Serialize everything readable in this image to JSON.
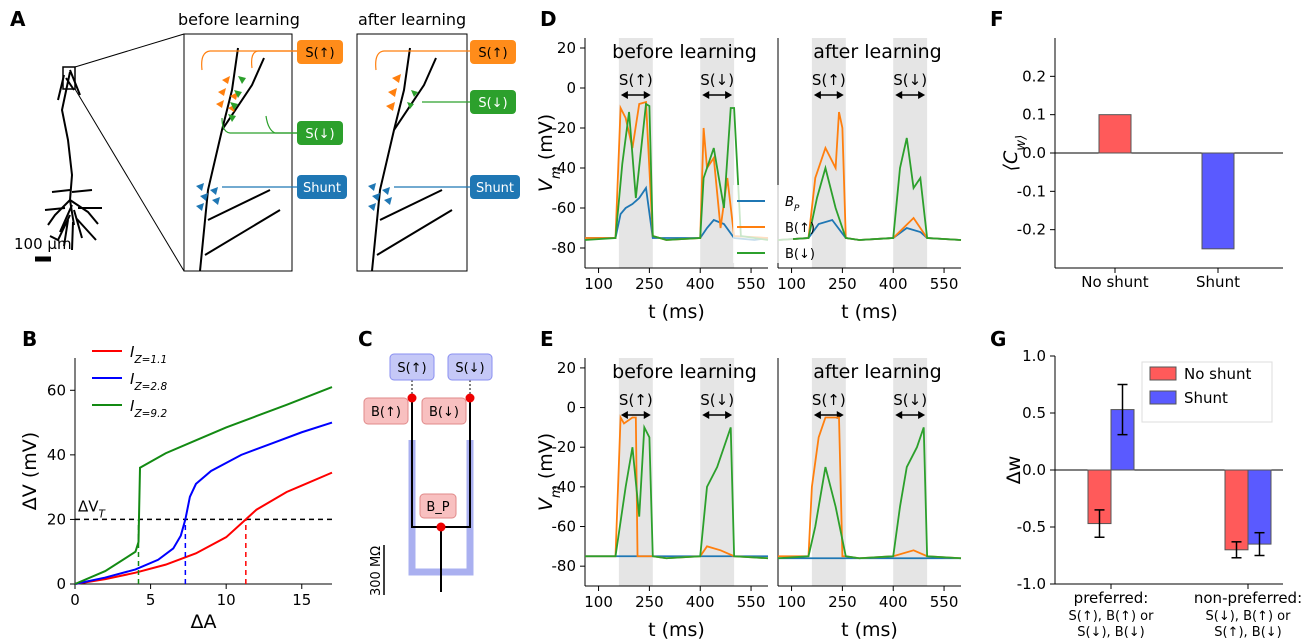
{
  "panel_labels": [
    "A",
    "B",
    "C",
    "D",
    "E",
    "F",
    "G"
  ],
  "colors": {
    "orange": "#ff7f0e",
    "green": "#2ca02c",
    "blue": "#1f77b4",
    "red": "#ff0000",
    "bluecurve": "#0000ff",
    "bargreen": "#138a13",
    "bar_red": "#ff5a5a",
    "bar_blue": "#5a5aff",
    "box_orange": "#ff8c1a",
    "box_green": "#2ca02c",
    "box_blue": "#1f77b4",
    "shade": "#e5e5e5"
  },
  "panel_a": {
    "title_before": "before learning",
    "title_after": "after learning",
    "scale_bar": "100 μm",
    "inputs": [
      "S(↑)",
      "S(↓)",
      "Shunt"
    ]
  },
  "panel_c": {
    "scale_label": "300 MΩ",
    "labels": [
      "S(↑)",
      "S(↓)",
      "B(↑)",
      "B(↓)",
      "B_P"
    ]
  },
  "trace_panels": {
    "ylabel": "V_m (mV)",
    "xlabel": "t (ms)",
    "before": "before learning",
    "after": "after learning",
    "window_up": "S(↑)",
    "window_down": "S(↓)",
    "legend": [
      "B_P",
      "B(↑)",
      "B(↓)"
    ]
  },
  "chart_data": [
    {
      "panel": "B",
      "type": "line",
      "xlabel": "ΔA",
      "ylabel": "ΔV (mV)",
      "xlim": [
        0,
        17
      ],
      "ylim": [
        0,
        70
      ],
      "xticks": [
        0,
        5,
        10,
        15
      ],
      "yticks": [
        0,
        20,
        40,
        60
      ],
      "threshold_label": "ΔV_T",
      "threshold_value": 20,
      "series": [
        {
          "name": "I_Z=1.1",
          "color": "red",
          "threshold_crossing": 11.3,
          "x": [
            0,
            2,
            4,
            6,
            8,
            10,
            11.3,
            12,
            14,
            15,
            17
          ],
          "y": [
            0,
            1.5,
            3.5,
            6,
            9.5,
            14.5,
            20,
            23,
            28.5,
            30.5,
            34.5
          ]
        },
        {
          "name": "I_Z=2.8",
          "color": "bluecurve",
          "threshold_crossing": 7.3,
          "x": [
            0,
            2,
            4,
            5.5,
            6.5,
            7,
            7.3,
            7.6,
            8,
            9,
            11,
            13,
            15,
            17
          ],
          "y": [
            0,
            2,
            4.5,
            7.5,
            11,
            15,
            20,
            27,
            31,
            35,
            40,
            43.5,
            47,
            50
          ]
        },
        {
          "name": "I_Z=9.2",
          "color": "bargreen",
          "threshold_crossing": 4.2,
          "x": [
            0,
            2,
            4,
            4.2,
            4.3,
            6,
            8,
            10,
            12,
            14,
            17
          ],
          "y": [
            0,
            4,
            10,
            13,
            36,
            40.5,
            44.5,
            48.5,
            52,
            55.5,
            61
          ]
        }
      ]
    },
    {
      "panel": "D",
      "type": "line",
      "xlabel": "t (ms)",
      "ylabel": "V_m (mV)",
      "xlim": [
        60,
        600
      ],
      "ylim": [
        -90,
        25
      ],
      "xticks": [
        100,
        250,
        400,
        550
      ],
      "yticks": [
        -80,
        -60,
        -40,
        -20,
        0,
        20
      ],
      "windows": [
        [
          160,
          260
        ],
        [
          400,
          500
        ]
      ],
      "series": [
        {
          "name": "B_P (before)",
          "color": "blue",
          "x": [
            60,
            150,
            165,
            180,
            200,
            220,
            240,
            260,
            300,
            400,
            420,
            440,
            470,
            500,
            560,
            600
          ],
          "y": [
            -75,
            -75,
            -63,
            -60,
            -58,
            -55,
            -50,
            -75,
            -75,
            -75,
            -70,
            -66,
            -68,
            -75,
            -76,
            -75
          ]
        },
        {
          "name": "B(↑) (before)",
          "color": "orange",
          "x": [
            60,
            150,
            165,
            180,
            200,
            220,
            240,
            260,
            300,
            400,
            410,
            420,
            440,
            460,
            480,
            500,
            600
          ],
          "y": [
            -75,
            -75,
            -10,
            -15,
            -30,
            -8,
            -7,
            -74,
            -76,
            -75,
            -20,
            -40,
            -35,
            -70,
            -45,
            -74,
            -75
          ]
        },
        {
          "name": "B(↓) (before)",
          "color": "green",
          "x": [
            60,
            150,
            170,
            190,
            210,
            240,
            250,
            260,
            300,
            400,
            410,
            440,
            470,
            490,
            500,
            520,
            600
          ],
          "y": [
            -76,
            -75,
            -38,
            -12,
            -55,
            -8,
            -9,
            -74,
            -76,
            -75,
            -45,
            -30,
            -60,
            -10,
            -10,
            -74,
            -76
          ]
        },
        {
          "name": "B_P (after)",
          "color": "blue",
          "x": [
            60,
            150,
            180,
            220,
            260,
            300,
            400,
            440,
            480,
            500,
            600
          ],
          "y": [
            -76,
            -75,
            -68,
            -66,
            -75,
            -76,
            -75,
            -70,
            -72,
            -75,
            -76
          ]
        },
        {
          "name": "B(↑) (after)",
          "color": "orange",
          "x": [
            60,
            150,
            170,
            200,
            230,
            240,
            250,
            260,
            300,
            400,
            430,
            460,
            500,
            600
          ],
          "y": [
            -76,
            -75,
            -45,
            -30,
            -40,
            -12,
            -20,
            -75,
            -76,
            -75,
            -70,
            -65,
            -75,
            -76
          ]
        },
        {
          "name": "B(↓) (after)",
          "color": "green",
          "x": [
            60,
            150,
            175,
            200,
            230,
            260,
            300,
            400,
            420,
            440,
            460,
            480,
            500,
            600
          ],
          "y": [
            -76,
            -75,
            -55,
            -40,
            -60,
            -75,
            -76,
            -75,
            -40,
            -25,
            -50,
            -45,
            -75,
            -76
          ]
        }
      ]
    },
    {
      "panel": "E",
      "type": "line",
      "xlabel": "t (ms)",
      "ylabel": "V_m (mV)",
      "xlim": [
        60,
        600
      ],
      "ylim": [
        -90,
        25
      ],
      "xticks": [
        100,
        250,
        400,
        550
      ],
      "yticks": [
        -80,
        -60,
        -40,
        -20,
        0,
        20
      ],
      "windows": [
        [
          160,
          260
        ],
        [
          400,
          500
        ]
      ],
      "series": [
        {
          "name": "B_P (before)",
          "color": "blue",
          "x": [
            60,
            160,
            260,
            400,
            500,
            600
          ],
          "y": [
            -75,
            -75,
            -75,
            -75,
            -75,
            -75
          ]
        },
        {
          "name": "B(↑) (before)",
          "color": "orange",
          "x": [
            60,
            150,
            165,
            175,
            200,
            210,
            215,
            260,
            300,
            400,
            420,
            460,
            500,
            600
          ],
          "y": [
            -75,
            -75,
            -5,
            -8,
            -5,
            -5,
            -75,
            -75,
            -76,
            -75,
            -70,
            -72,
            -75,
            -76
          ]
        },
        {
          "name": "B(↓) (before)",
          "color": "green",
          "x": [
            60,
            150,
            180,
            200,
            220,
            235,
            250,
            260,
            300,
            400,
            420,
            450,
            480,
            490,
            500,
            600
          ],
          "y": [
            -75,
            -75,
            -40,
            -20,
            -55,
            -10,
            -15,
            -75,
            -76,
            -75,
            -40,
            -30,
            -15,
            -10,
            -75,
            -76
          ]
        },
        {
          "name": "B_P (after)",
          "color": "blue",
          "x": [
            60,
            160,
            260,
            400,
            500,
            600
          ],
          "y": [
            -76,
            -76,
            -76,
            -76,
            -76,
            -76
          ]
        },
        {
          "name": "B(↑) (after)",
          "color": "orange",
          "x": [
            60,
            150,
            160,
            180,
            200,
            230,
            240,
            250,
            260,
            300,
            400,
            460,
            500,
            600
          ],
          "y": [
            -75,
            -75,
            -40,
            -15,
            -5,
            -5,
            -5,
            -75,
            -75,
            -76,
            -75,
            -72,
            -75,
            -76
          ]
        },
        {
          "name": "B(↓) (after)",
          "color": "green",
          "x": [
            60,
            150,
            170,
            200,
            230,
            260,
            300,
            400,
            420,
            440,
            470,
            490,
            500,
            600
          ],
          "y": [
            -76,
            -75,
            -60,
            -30,
            -50,
            -75,
            -76,
            -75,
            -50,
            -30,
            -20,
            -10,
            -75,
            -76
          ]
        }
      ]
    },
    {
      "panel": "F",
      "type": "bar",
      "ylabel": "⟨C_w⟩",
      "categories": [
        "No shunt",
        "Shunt"
      ],
      "values": [
        0.1,
        -0.25
      ],
      "ylim": [
        -0.3,
        0.3
      ],
      "yticks": [
        -0.2,
        -0.1,
        0.0,
        0.1,
        0.2
      ],
      "colors": [
        "bar_red",
        "bar_blue"
      ]
    },
    {
      "panel": "G",
      "type": "bar",
      "ylabel": "Δw",
      "categories": [
        "preferred:",
        "non-preferred:"
      ],
      "category_sublines": [
        [
          "S(↑), B(↑) or",
          "S(↓), B(↓)"
        ],
        [
          "S(↓), B(↑) or",
          "S(↑), B(↓)"
        ]
      ],
      "ylim": [
        -1.0,
        1.0
      ],
      "yticks": [
        -1.0,
        -0.5,
        0.0,
        0.5,
        1.0
      ],
      "series": [
        {
          "name": "No shunt",
          "color": "bar_red",
          "values": [
            -0.47,
            -0.7
          ],
          "errors": [
            0.12,
            0.07
          ]
        },
        {
          "name": "Shunt",
          "color": "bar_blue",
          "values": [
            0.53,
            -0.65
          ],
          "errors": [
            0.22,
            0.1
          ]
        }
      ]
    }
  ]
}
